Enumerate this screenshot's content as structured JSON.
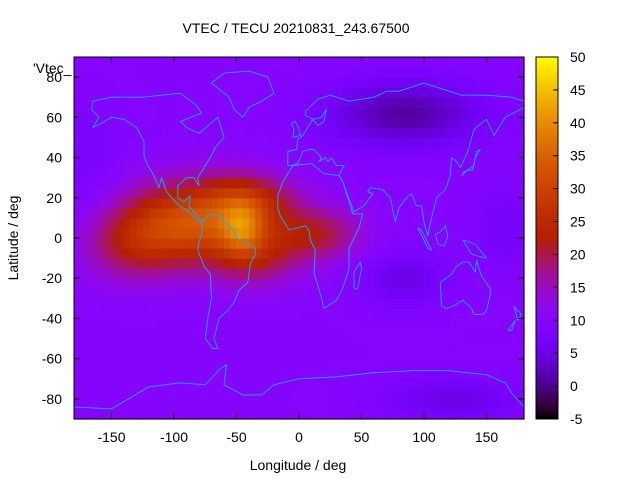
{
  "chart_data": {
    "type": "heatmap",
    "title": "VTEC / TECU 20210831_243.67500",
    "xlabel": "Longitude / deg",
    "ylabel": "Latitude / deg",
    "xlim": [
      -180,
      180
    ],
    "ylim": [
      -90,
      90
    ],
    "x_ticks": [
      -150,
      -100,
      -50,
      0,
      50,
      100,
      150
    ],
    "y_ticks": [
      -80,
      -60,
      -40,
      -20,
      0,
      20,
      40,
      60,
      80
    ],
    "x_tick_labels": [
      "-150",
      "-100",
      "-50",
      "0",
      "50",
      "100",
      "150"
    ],
    "y_tick_labels": [
      "-80",
      "-60",
      "-40",
      "-20",
      "0",
      "20",
      "40",
      "60",
      "80"
    ],
    "colorbar": {
      "range": [
        -5,
        50
      ],
      "ticks": [
        50,
        45,
        40,
        35,
        30,
        25,
        20,
        15,
        10,
        5,
        0,
        -5
      ],
      "tick_labels": [
        "50",
        "45",
        "40",
        "35",
        "30",
        "25",
        "20",
        "15",
        "10",
        "5",
        "0",
        "-5"
      ]
    },
    "legend_entry": "'Vtec_",
    "grid_resolution_deg": 5,
    "background_vtec": 10,
    "blobs": [
      {
        "lon": -110,
        "lat": 5,
        "amp": 14,
        "sigma_lon": 30,
        "sigma_lat": 14
      },
      {
        "lon": -60,
        "lat": 10,
        "amp": 17,
        "sigma_lon": 35,
        "sigma_lat": 14
      },
      {
        "lon": -45,
        "lat": 5,
        "amp": 12,
        "sigma_lon": 12,
        "sigma_lat": 9
      },
      {
        "lon": -40,
        "lat": 20,
        "amp": 7,
        "sigma_lon": 25,
        "sigma_lat": 8
      },
      {
        "lon": -35,
        "lat": -10,
        "amp": 8,
        "sigma_lon": 25,
        "sigma_lat": 10
      },
      {
        "lon": 15,
        "lat": 2,
        "amp": 10,
        "sigma_lon": 25,
        "sigma_lat": 9
      },
      {
        "lon": -140,
        "lat": -5,
        "amp": 6,
        "sigma_lon": 25,
        "sigma_lat": 12
      },
      {
        "lon": 85,
        "lat": 62,
        "amp": -9,
        "sigma_lon": 45,
        "sigma_lat": 12
      },
      {
        "lon": 85,
        "lat": -20,
        "amp": -5,
        "sigma_lon": 25,
        "sigma_lat": 10
      },
      {
        "lon": 125,
        "lat": -80,
        "amp": -5,
        "sigma_lon": 40,
        "sigma_lat": 8
      },
      {
        "lon": 165,
        "lat": 5,
        "amp": -3,
        "sigma_lon": 20,
        "sigma_lat": 15
      },
      {
        "lon": -170,
        "lat": 40,
        "amp": -2,
        "sigma_lon": 20,
        "sigma_lat": 20
      }
    ],
    "coastlines": [
      {
        "name": "north-america",
        "lonlat": [
          [
            -165,
            68
          ],
          [
            -150,
            70
          ],
          [
            -125,
            70
          ],
          [
            -95,
            72
          ],
          [
            -82,
            66
          ],
          [
            -78,
            62
          ],
          [
            -95,
            58
          ],
          [
            -90,
            55
          ],
          [
            -80,
            52
          ],
          [
            -65,
            60
          ],
          [
            -60,
            50
          ],
          [
            -67,
            45
          ],
          [
            -70,
            41
          ],
          [
            -76,
            35
          ],
          [
            -81,
            30
          ],
          [
            -80,
            26
          ],
          [
            -82,
            28
          ],
          [
            -84,
            30
          ],
          [
            -90,
            30
          ],
          [
            -97,
            26
          ],
          [
            -97,
            20
          ],
          [
            -92,
            18
          ],
          [
            -87,
            21
          ],
          [
            -88,
            16
          ],
          [
            -83,
            12
          ],
          [
            -78,
            8
          ],
          [
            -80,
            8
          ],
          [
            -85,
            11
          ],
          [
            -90,
            14
          ],
          [
            -96,
            16
          ],
          [
            -106,
            23
          ],
          [
            -110,
            30
          ],
          [
            -112,
            25
          ],
          [
            -117,
            32
          ],
          [
            -121,
            36
          ],
          [
            -124,
            41
          ],
          [
            -124,
            48
          ],
          [
            -130,
            55
          ],
          [
            -140,
            59
          ],
          [
            -150,
            60
          ],
          [
            -158,
            57
          ],
          [
            -165,
            55
          ],
          [
            -160,
            60
          ],
          [
            -166,
            64
          ],
          [
            -165,
            68
          ]
        ]
      },
      {
        "name": "greenland",
        "lonlat": [
          [
            -45,
            60
          ],
          [
            -52,
            64
          ],
          [
            -56,
            70
          ],
          [
            -70,
            77
          ],
          [
            -60,
            82
          ],
          [
            -40,
            83
          ],
          [
            -25,
            80
          ],
          [
            -20,
            72
          ],
          [
            -30,
            68
          ],
          [
            -40,
            65
          ],
          [
            -45,
            60
          ]
        ]
      },
      {
        "name": "south-america",
        "lonlat": [
          [
            -78,
            8
          ],
          [
            -77,
            4
          ],
          [
            -80,
            -2
          ],
          [
            -81,
            -6
          ],
          [
            -76,
            -14
          ],
          [
            -71,
            -18
          ],
          [
            -70,
            -30
          ],
          [
            -73,
            -40
          ],
          [
            -75,
            -50
          ],
          [
            -69,
            -55
          ],
          [
            -65,
            -55
          ],
          [
            -68,
            -50
          ],
          [
            -64,
            -40
          ],
          [
            -57,
            -36
          ],
          [
            -52,
            -32
          ],
          [
            -48,
            -26
          ],
          [
            -41,
            -22
          ],
          [
            -39,
            -13
          ],
          [
            -35,
            -8
          ],
          [
            -35,
            -5
          ],
          [
            -40,
            -3
          ],
          [
            -50,
            0
          ],
          [
            -52,
            4
          ],
          [
            -60,
            8
          ],
          [
            -63,
            11
          ],
          [
            -72,
            12
          ],
          [
            -76,
            9
          ],
          [
            -78,
            8
          ]
        ]
      },
      {
        "name": "africa",
        "lonlat": [
          [
            -17,
            21
          ],
          [
            -13,
            28
          ],
          [
            -9,
            32
          ],
          [
            -5,
            36
          ],
          [
            10,
            37
          ],
          [
            20,
            32
          ],
          [
            32,
            31
          ],
          [
            35,
            28
          ],
          [
            43,
            12
          ],
          [
            51,
            12
          ],
          [
            48,
            5
          ],
          [
            40,
            -5
          ],
          [
            40,
            -15
          ],
          [
            35,
            -25
          ],
          [
            30,
            -31
          ],
          [
            20,
            -35
          ],
          [
            18,
            -30
          ],
          [
            12,
            -17
          ],
          [
            13,
            -6
          ],
          [
            9,
            -1
          ],
          [
            8,
            4
          ],
          [
            5,
            6
          ],
          [
            -8,
            4
          ],
          [
            -15,
            11
          ],
          [
            -17,
            15
          ],
          [
            -17,
            21
          ]
        ]
      },
      {
        "name": "eurasia",
        "lonlat": [
          [
            -9,
            36
          ],
          [
            -9,
            43
          ],
          [
            -2,
            44
          ],
          [
            -1,
            49
          ],
          [
            3,
            51
          ],
          [
            5,
            53
          ],
          [
            8,
            56
          ],
          [
            11,
            59
          ],
          [
            5,
            61
          ],
          [
            5,
            63
          ],
          [
            15,
            69
          ],
          [
            25,
            71
          ],
          [
            40,
            68
          ],
          [
            60,
            70
          ],
          [
            70,
            73
          ],
          [
            80,
            73
          ],
          [
            100,
            77
          ],
          [
            115,
            74
          ],
          [
            130,
            71
          ],
          [
            150,
            71
          ],
          [
            170,
            70
          ],
          [
            180,
            68
          ],
          [
            180,
            65
          ],
          [
            165,
            60
          ],
          [
            160,
            55
          ],
          [
            156,
            51
          ],
          [
            150,
            59
          ],
          [
            140,
            54
          ],
          [
            135,
            43
          ],
          [
            129,
            35
          ],
          [
            126,
            38
          ],
          [
            122,
            40
          ],
          [
            121,
            31
          ],
          [
            117,
            24
          ],
          [
            110,
            20
          ],
          [
            106,
            10
          ],
          [
            103,
            1
          ],
          [
            100,
            8
          ],
          [
            98,
            16
          ],
          [
            94,
            16
          ],
          [
            90,
            22
          ],
          [
            86,
            20
          ],
          [
            80,
            15
          ],
          [
            77,
            8
          ],
          [
            73,
            20
          ],
          [
            67,
            24
          ],
          [
            57,
            25
          ],
          [
            55,
            23
          ],
          [
            59,
            22
          ],
          [
            52,
            16
          ],
          [
            44,
            13
          ],
          [
            39,
            21
          ],
          [
            35,
            28
          ],
          [
            32,
            31
          ],
          [
            36,
            36
          ],
          [
            30,
            36
          ],
          [
            26,
            40
          ],
          [
            23,
            38
          ],
          [
            21,
            40
          ],
          [
            16,
            38
          ],
          [
            18,
            40
          ],
          [
            12,
            44
          ],
          [
            8,
            44
          ],
          [
            3,
            43
          ],
          [
            -1,
            37
          ],
          [
            -6,
            36
          ],
          [
            -9,
            36
          ]
        ]
      },
      {
        "name": "uk",
        "lonlat": [
          [
            -5,
            50
          ],
          [
            1,
            51
          ],
          [
            0,
            54
          ],
          [
            -3,
            58
          ],
          [
            -6,
            57
          ],
          [
            -4,
            54
          ],
          [
            -5,
            50
          ]
        ]
      },
      {
        "name": "scandinavia-inner",
        "lonlat": [
          [
            11,
            59
          ],
          [
            18,
            60
          ],
          [
            22,
            64
          ],
          [
            20,
            58
          ],
          [
            15,
            56
          ],
          [
            11,
            59
          ]
        ]
      },
      {
        "name": "japan",
        "lonlat": [
          [
            130,
            31
          ],
          [
            135,
            34
          ],
          [
            140,
            36
          ],
          [
            142,
            43
          ],
          [
            145,
            44
          ],
          [
            141,
            40
          ],
          [
            139,
            34
          ],
          [
            132,
            33
          ],
          [
            130,
            31
          ]
        ]
      },
      {
        "name": "madagascar",
        "lonlat": [
          [
            44,
            -25
          ],
          [
            47,
            -25
          ],
          [
            50,
            -15
          ],
          [
            49,
            -12
          ],
          [
            44,
            -17
          ],
          [
            44,
            -25
          ]
        ]
      },
      {
        "name": "borneo",
        "lonlat": [
          [
            109,
            2
          ],
          [
            111,
            -3
          ],
          [
            116,
            -4
          ],
          [
            119,
            1
          ],
          [
            117,
            6
          ],
          [
            113,
            3
          ],
          [
            109,
            2
          ]
        ]
      },
      {
        "name": "sumatra",
        "lonlat": [
          [
            95,
            5
          ],
          [
            98,
            4
          ],
          [
            106,
            -6
          ],
          [
            103,
            -5
          ],
          [
            99,
            0
          ],
          [
            95,
            5
          ]
        ]
      },
      {
        "name": "new-guinea",
        "lonlat": [
          [
            131,
            -1
          ],
          [
            141,
            -3
          ],
          [
            150,
            -10
          ],
          [
            143,
            -9
          ],
          [
            138,
            -8
          ],
          [
            131,
            -1
          ]
        ]
      },
      {
        "name": "australia",
        "lonlat": [
          [
            113,
            -22
          ],
          [
            114,
            -34
          ],
          [
            118,
            -35
          ],
          [
            123,
            -34
          ],
          [
            131,
            -31
          ],
          [
            138,
            -35
          ],
          [
            140,
            -38
          ],
          [
            147,
            -38
          ],
          [
            150,
            -36
          ],
          [
            153,
            -28
          ],
          [
            153,
            -25
          ],
          [
            146,
            -19
          ],
          [
            142,
            -11
          ],
          [
            141,
            -17
          ],
          [
            136,
            -12
          ],
          [
            131,
            -12
          ],
          [
            126,
            -14
          ],
          [
            122,
            -18
          ],
          [
            113,
            -22
          ]
        ]
      },
      {
        "name": "new-zealand",
        "lonlat": [
          [
            172,
            -34
          ],
          [
            178,
            -38
          ],
          [
            175,
            -41
          ],
          [
            172,
            -34
          ]
        ]
      },
      {
        "name": "new-zealand-south",
        "lonlat": [
          [
            173,
            -41
          ],
          [
            170,
            -46
          ],
          [
            167,
            -46
          ],
          [
            173,
            -41
          ]
        ]
      },
      {
        "name": "antarctica",
        "lonlat": [
          [
            -180,
            -84
          ],
          [
            -150,
            -85
          ],
          [
            -120,
            -74
          ],
          [
            -95,
            -72
          ],
          [
            -75,
            -73
          ],
          [
            -63,
            -65
          ],
          [
            -58,
            -63
          ],
          [
            -60,
            -73
          ],
          [
            -45,
            -78
          ],
          [
            -30,
            -78
          ],
          [
            -20,
            -73
          ],
          [
            0,
            -70
          ],
          [
            30,
            -69
          ],
          [
            60,
            -67
          ],
          [
            90,
            -66
          ],
          [
            120,
            -66
          ],
          [
            150,
            -68
          ],
          [
            165,
            -72
          ],
          [
            170,
            -77
          ],
          [
            180,
            -84
          ]
        ]
      }
    ]
  },
  "colors": {
    "coastline": "#17a9ff",
    "frame": "#000000",
    "background": "#ffffff"
  }
}
